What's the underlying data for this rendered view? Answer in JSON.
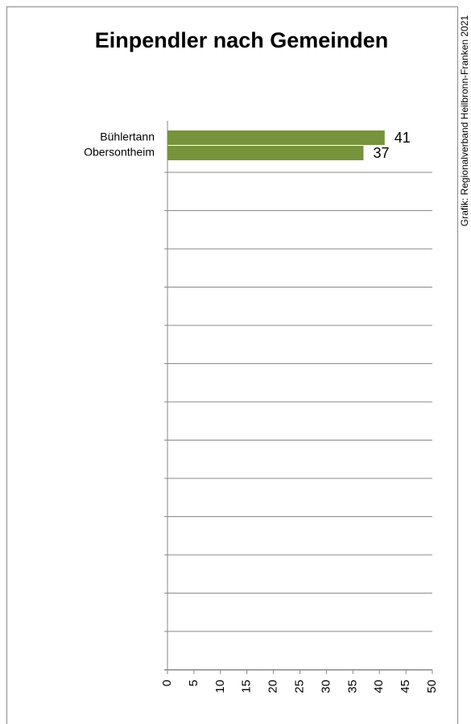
{
  "chart_data": {
    "type": "bar",
    "orientation": "horizontal",
    "title": "Einpendler nach Gemeinden",
    "categories": [
      "Bühlertann",
      "Obersontheim"
    ],
    "values": [
      41,
      37
    ],
    "color": "#77933c",
    "xlim": [
      0,
      50
    ],
    "xticks": [
      0,
      5,
      10,
      15,
      20,
      25,
      30,
      35,
      40,
      45,
      50
    ],
    "source": "Grafik: Regionalverband Heilbronn-Franken 2021"
  }
}
